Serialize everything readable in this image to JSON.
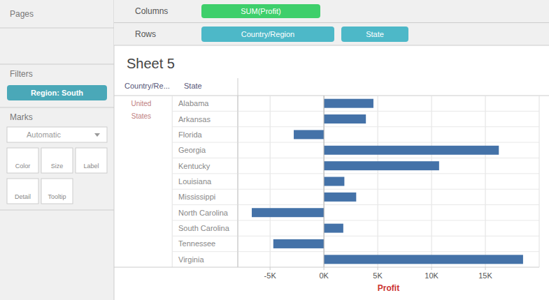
{
  "chart_data": {
    "type": "bar",
    "orientation": "horizontal",
    "title": "Sheet 5",
    "categories": [
      "Alabama",
      "Arkansas",
      "Florida",
      "Georgia",
      "Kentucky",
      "Louisiana",
      "Mississippi",
      "North Carolina",
      "South Carolina",
      "Tennessee",
      "Virginia"
    ],
    "values": [
      4600,
      3900,
      -2800,
      16250,
      10700,
      1900,
      3000,
      -6700,
      1800,
      -4700,
      18500
    ],
    "color": "#4472a8",
    "xlabel": "Profit",
    "xlim": [
      -8000,
      20000
    ],
    "xticks": [
      {
        "value": -5000,
        "label": "-5K"
      },
      {
        "value": 0,
        "label": "0K"
      },
      {
        "value": 5000,
        "label": "5K"
      },
      {
        "value": 10000,
        "label": "10K"
      },
      {
        "value": 15000,
        "label": "15K"
      }
    ],
    "grid": true,
    "annotations": [
      "Pages",
      "Filters",
      "Region: South",
      "Marks",
      "Automatic",
      "Color",
      "Size",
      "Label",
      "Detail",
      "Tooltip",
      "Columns",
      "SUM(Profit)",
      "Rows",
      "Country/Region",
      "State",
      "Country/Re...",
      "State",
      "United",
      "States"
    ]
  }
}
